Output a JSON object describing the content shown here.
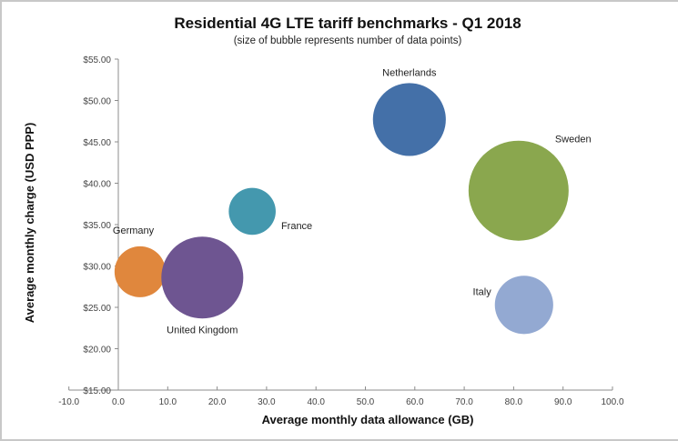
{
  "chart_data": {
    "type": "scatter",
    "subtype": "bubble",
    "title": "Residential 4G LTE tariff benchmarks - Q1 2018",
    "subtitle": "(size of bubble represents number of data points)",
    "xlabel": "Average monthly data allowance (GB)",
    "ylabel": "Average monthly charge (USD PPP)",
    "xlim": [
      -10,
      100
    ],
    "ylim": [
      15,
      55
    ],
    "x_ticks": [
      -10,
      0,
      10,
      20,
      30,
      40,
      50,
      60,
      70,
      80,
      90,
      100
    ],
    "x_tick_labels": [
      "-10.0",
      "0.0",
      "10.0",
      "20.0",
      "30.0",
      "40.0",
      "50.0",
      "60.0",
      "70.0",
      "80.0",
      "90.0",
      "100.0"
    ],
    "y_ticks": [
      15,
      20,
      25,
      30,
      35,
      40,
      45,
      50,
      55
    ],
    "y_tick_labels": [
      "$15.00",
      "$20.00",
      "$25.00",
      "$30.00",
      "$35.00",
      "$40.00",
      "$45.00",
      "$50.00",
      "$55.00"
    ],
    "grid": false,
    "legend": "none",
    "series": [
      {
        "name": "Germany",
        "x": 4.4,
        "y": 29.3,
        "size": 0.26,
        "color": "#E0873D",
        "label_position": "top-left"
      },
      {
        "name": "United Kingdom",
        "x": 17.0,
        "y": 28.6,
        "size": 0.67,
        "color": "#6E5591",
        "label_position": "bottom"
      },
      {
        "name": "France",
        "x": 27.1,
        "y": 36.6,
        "size": 0.22,
        "color": "#4498AE",
        "label_position": "bottom-right"
      },
      {
        "name": "Netherlands",
        "x": 58.9,
        "y": 47.7,
        "size": 0.53,
        "color": "#4470A8",
        "label_position": "top"
      },
      {
        "name": "Sweden",
        "x": 81.0,
        "y": 39.1,
        "size": 1.0,
        "color": "#8AA74E",
        "label_position": "top-right"
      },
      {
        "name": "Italy",
        "x": 82.1,
        "y": 25.3,
        "size": 0.34,
        "color": "#93A9D2",
        "label_position": "left"
      }
    ]
  }
}
